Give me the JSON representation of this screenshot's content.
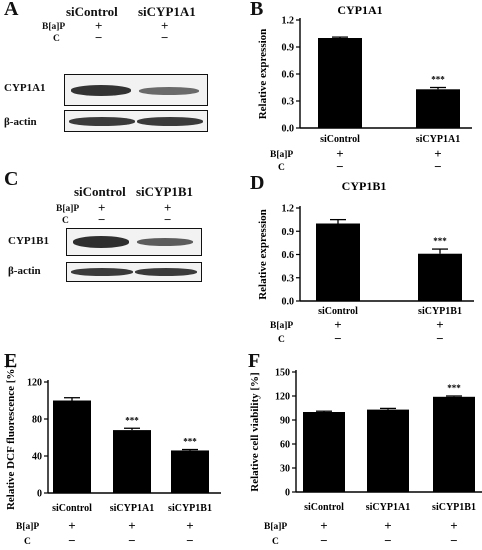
{
  "panels": {
    "A": {
      "letter": "A",
      "headers": [
        "siControl",
        "siCYP1A1"
      ],
      "rows": [
        {
          "label": "B[a]P",
          "signs": [
            "+",
            "+"
          ]
        },
        {
          "label": "C",
          "signs": [
            "−",
            "−"
          ]
        }
      ],
      "blots": [
        "CYP1A1",
        "β-actin"
      ]
    },
    "C": {
      "letter": "C",
      "headers": [
        "siControl",
        "siCYP1B1"
      ],
      "rows": [
        {
          "label": "B[a]P",
          "signs": [
            "+",
            "+"
          ]
        },
        {
          "label": "C",
          "signs": [
            "−",
            "−"
          ]
        }
      ],
      "blots": [
        "CYP1B1",
        "β-actin"
      ]
    }
  },
  "chart_data": [
    {
      "panel": "B",
      "type": "bar",
      "title": "CYP1A1",
      "ylabel": "Relative expression",
      "ylim": [
        0,
        1.2
      ],
      "yticks": [
        "0.0",
        "0.3",
        "0.6",
        "0.9",
        "1.2"
      ],
      "categories": [
        "siControl",
        "siCYP1A1"
      ],
      "values": [
        1.0,
        0.43
      ],
      "errors": [
        0.01,
        0.02
      ],
      "annotations": [
        "",
        "***"
      ],
      "condition_rows": [
        {
          "label": "B[a]P",
          "signs": [
            "+",
            "+"
          ]
        },
        {
          "label": "C",
          "signs": [
            "−",
            "−"
          ]
        }
      ]
    },
    {
      "panel": "D",
      "type": "bar",
      "title": "CYP1B1",
      "ylabel": "Relative expression",
      "ylim": [
        0,
        1.2
      ],
      "yticks": [
        "0.0",
        "0.3",
        "0.6",
        "0.9",
        "1.2"
      ],
      "categories": [
        "siControl",
        "siCYP1B1"
      ],
      "values": [
        1.0,
        0.61
      ],
      "errors": [
        0.05,
        0.06
      ],
      "annotations": [
        "",
        "***"
      ],
      "condition_rows": [
        {
          "label": "B[a]P",
          "signs": [
            "+",
            "+"
          ]
        },
        {
          "label": "C",
          "signs": [
            "−",
            "−"
          ]
        }
      ]
    },
    {
      "panel": "E",
      "type": "bar",
      "title": "",
      "ylabel": "Relative DCF fluorescence [%]",
      "ylim": [
        0,
        120
      ],
      "yticks": [
        "0",
        "40",
        "80",
        "120"
      ],
      "categories": [
        "siControl",
        "siCYP1A1",
        "siCYP1B1"
      ],
      "values": [
        100,
        68,
        46
      ],
      "errors": [
        3,
        2,
        1
      ],
      "annotations": [
        "",
        "***",
        "***"
      ],
      "condition_rows": [
        {
          "label": "B[a]P",
          "signs": [
            "+",
            "+",
            "+"
          ]
        },
        {
          "label": "C",
          "signs": [
            "−",
            "−",
            "−"
          ]
        }
      ]
    },
    {
      "panel": "F",
      "type": "bar",
      "title": "",
      "ylabel": "Relative cell viability [%]",
      "ylim": [
        0,
        150
      ],
      "yticks": [
        "0",
        "30",
        "60",
        "90",
        "120",
        "150"
      ],
      "categories": [
        "siControl",
        "siCYP1A1",
        "siCYP1B1"
      ],
      "values": [
        100,
        103,
        119
      ],
      "errors": [
        1,
        1.5,
        1
      ],
      "annotations": [
        "",
        "",
        "***"
      ],
      "condition_rows": [
        {
          "label": "B[a]P",
          "signs": [
            "+",
            "+",
            "+"
          ]
        },
        {
          "label": "C",
          "signs": [
            "−",
            "−",
            "−"
          ]
        }
      ]
    }
  ]
}
